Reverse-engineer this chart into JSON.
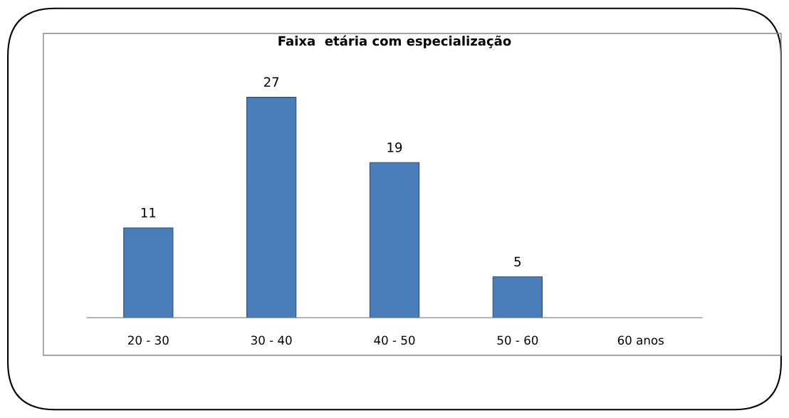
{
  "chart_data": {
    "type": "bar",
    "title": "Faixa  etária com especialização",
    "categories": [
      "20 - 30",
      "30 - 40",
      "40 - 50",
      "50 - 60",
      "60 anos"
    ],
    "values": [
      11,
      27,
      19,
      5,
      null
    ],
    "color": "#4a7ebb",
    "data_labels": true
  }
}
